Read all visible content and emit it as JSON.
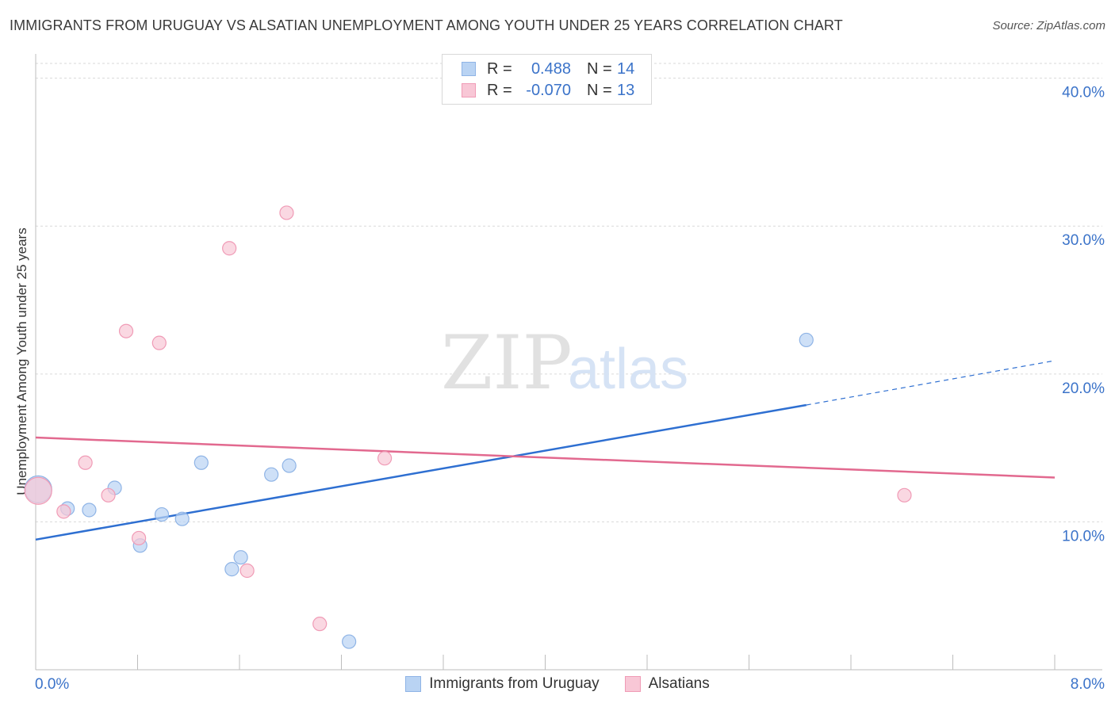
{
  "title": "IMMIGRANTS FROM URUGUAY VS ALSATIAN UNEMPLOYMENT AMONG YOUTH UNDER 25 YEARS CORRELATION CHART",
  "source": "Source: ZipAtlas.com",
  "watermark": {
    "zip": "ZIP",
    "atlas": "atlas"
  },
  "legend": {
    "rows": [
      {
        "r_label": "R =",
        "r_value": "0.488",
        "n_label": "N =",
        "n_value": "14"
      },
      {
        "r_label": "R =",
        "r_value": "-0.070",
        "n_label": "N =",
        "n_value": "13"
      }
    ]
  },
  "colors": {
    "blue_fill": "#b9d3f3",
    "blue_stroke": "#8fb4e6",
    "blue_line": "#2e6fd1",
    "pink_fill": "#f8c7d6",
    "pink_stroke": "#f09bb6",
    "pink_line": "#e2698f",
    "tick_color": "#3b73c9",
    "grid": "#d9d9d9"
  },
  "chart_data": {
    "type": "scatter",
    "title": "IMMIGRANTS FROM URUGUAY VS ALSATIAN UNEMPLOYMENT AMONG YOUTH UNDER 25 YEARS CORRELATION CHART",
    "xlabel": "",
    "ylabel": "Unemployment Among Youth under 25 years",
    "xlim": [
      0,
      8
    ],
    "ylim": [
      0,
      41
    ],
    "x_tick_labels": [
      {
        "value": 0,
        "label": "0.0%"
      },
      {
        "value": 8,
        "label": "8.0%"
      }
    ],
    "y_tick_labels": [
      {
        "value": 10,
        "label": "10.0%"
      },
      {
        "value": 20,
        "label": "20.0%"
      },
      {
        "value": 30,
        "label": "30.0%"
      },
      {
        "value": 40,
        "label": "40.0%"
      }
    ],
    "series": [
      {
        "name": "Immigrants from Uruguay",
        "color": "#b9d3f3",
        "points": [
          {
            "x": 0.02,
            "y": 12.2,
            "big": true
          },
          {
            "x": 0.25,
            "y": 10.9
          },
          {
            "x": 0.42,
            "y": 10.8
          },
          {
            "x": 0.62,
            "y": 12.3
          },
          {
            "x": 0.82,
            "y": 8.4
          },
          {
            "x": 0.99,
            "y": 10.5
          },
          {
            "x": 1.15,
            "y": 10.2
          },
          {
            "x": 1.3,
            "y": 14.0
          },
          {
            "x": 1.54,
            "y": 6.8
          },
          {
            "x": 1.61,
            "y": 7.6
          },
          {
            "x": 1.85,
            "y": 13.2
          },
          {
            "x": 1.99,
            "y": 13.8
          },
          {
            "x": 2.46,
            "y": 1.9
          },
          {
            "x": 6.05,
            "y": 22.3
          }
        ],
        "trend": {
          "x0": 0,
          "y0": 8.8,
          "x1": 6.05,
          "y1": 17.9,
          "dash_x1": 8.0,
          "dash_y1": 20.9
        }
      },
      {
        "name": "Alsatians",
        "color": "#f8c7d6",
        "points": [
          {
            "x": 0.02,
            "y": 12.1,
            "big": true
          },
          {
            "x": 0.22,
            "y": 10.7
          },
          {
            "x": 0.39,
            "y": 14.0
          },
          {
            "x": 0.57,
            "y": 11.8
          },
          {
            "x": 0.71,
            "y": 22.9
          },
          {
            "x": 0.81,
            "y": 8.9
          },
          {
            "x": 0.97,
            "y": 22.1
          },
          {
            "x": 1.52,
            "y": 28.5
          },
          {
            "x": 1.66,
            "y": 6.7
          },
          {
            "x": 1.97,
            "y": 30.9
          },
          {
            "x": 2.23,
            "y": 3.1
          },
          {
            "x": 2.74,
            "y": 14.3
          },
          {
            "x": 6.82,
            "y": 11.8
          }
        ],
        "trend": {
          "x0": 0,
          "y0": 15.7,
          "x1": 8.0,
          "y1": 13.0
        }
      }
    ]
  }
}
